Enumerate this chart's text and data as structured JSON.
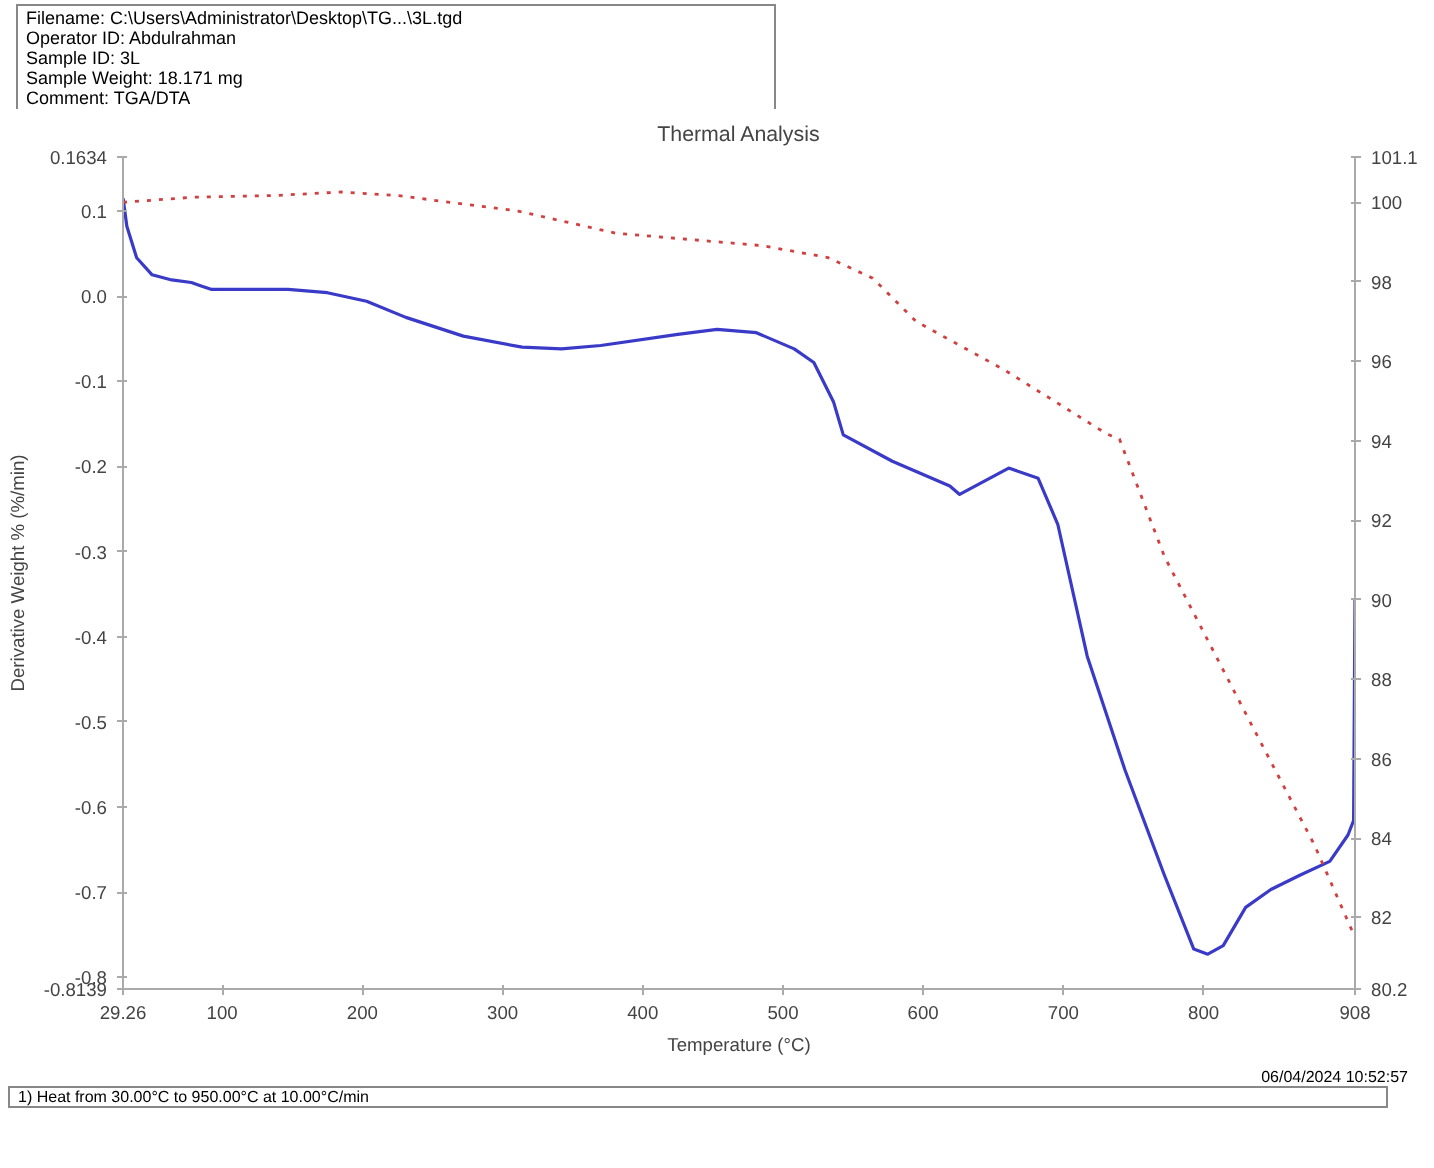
{
  "chart_data": {
    "type": "line",
    "title": "Thermal Analysis",
    "xlabel": "Temperature (°C)",
    "ylabel": "Derivative Weight % (%/min)",
    "annotations": [
      "Filename: C:\\Users\\Administrator\\Desktop\\TG...\\3L.tgd",
      "Operator ID: Abdulrahman",
      "Sample ID: 3L",
      "Sample Weight: 18.171 mg",
      "Comment: TGA/DTA",
      "06/04/2024 10:52:57",
      "1)  Heat from 30.00°C to 950.00°C at 10.00°C/min"
    ],
    "xlim": [
      29.26,
      908
    ],
    "xticks": [
      29.26,
      100,
      200,
      300,
      400,
      500,
      600,
      700,
      800,
      908
    ],
    "ylim": [
      -0.8139,
      0.1634
    ],
    "yticks": [
      0.1634,
      0.1,
      {
        "value": 0,
        "label": "0.0"
      },
      -0.1,
      -0.2,
      -0.3,
      -0.4,
      -0.5,
      -0.6,
      -0.7,
      -0.8,
      -0.8139
    ],
    "y2lim": [
      80.2,
      101.14
    ],
    "y2ticks": [
      {
        "value": 101.14,
        "label": "101.1"
      },
      100,
      98,
      96,
      94,
      92,
      90,
      88,
      86,
      84,
      82,
      80.2
    ],
    "grid": false,
    "series": [
      {
        "color": "#3a3ac8",
        "line_style": "solid",
        "axis": "y",
        "x": [
          29.3,
          32,
          39,
          50,
          64,
          78,
          85,
          92,
          120,
          147,
          175,
          203,
          231,
          272,
          314,
          342,
          370,
          425,
          453,
          481,
          508,
          522,
          536,
          543,
          578,
          619,
          626,
          661,
          682,
          696,
          717,
          744,
          772,
          793,
          803,
          814,
          830,
          848,
          869,
          890,
          903,
          907,
          908
        ],
        "values": [
          0.115,
          0.082,
          0.045,
          0.025,
          0.019,
          0.016,
          0.012,
          0.008,
          0.008,
          0.008,
          0.004,
          -0.006,
          -0.025,
          -0.047,
          -0.06,
          -0.062,
          -0.058,
          -0.045,
          -0.039,
          -0.043,
          -0.062,
          -0.078,
          -0.124,
          -0.163,
          -0.194,
          -0.223,
          -0.233,
          -0.202,
          -0.214,
          -0.268,
          -0.423,
          -0.557,
          -0.68,
          -0.767,
          -0.773,
          -0.763,
          -0.718,
          -0.697,
          -0.68,
          -0.664,
          -0.633,
          -0.616,
          -0.355
        ]
      },
      {
        "color": "#d04040",
        "line_style": "dotted",
        "axis": "y2",
        "x": [
          29.26,
          80.7,
          137.6,
          184.8,
          225.1,
          311,
          381,
          485,
          532,
          564,
          595,
          658,
          731,
          740,
          772,
          832,
          879,
          908
        ],
        "values": [
          100.0,
          100.13,
          100.17,
          100.26,
          100.17,
          99.78,
          99.22,
          98.91,
          98.61,
          98.09,
          97.0,
          95.78,
          94.17,
          94.04,
          91.09,
          87.0,
          83.83,
          81.5
        ]
      }
    ]
  }
}
